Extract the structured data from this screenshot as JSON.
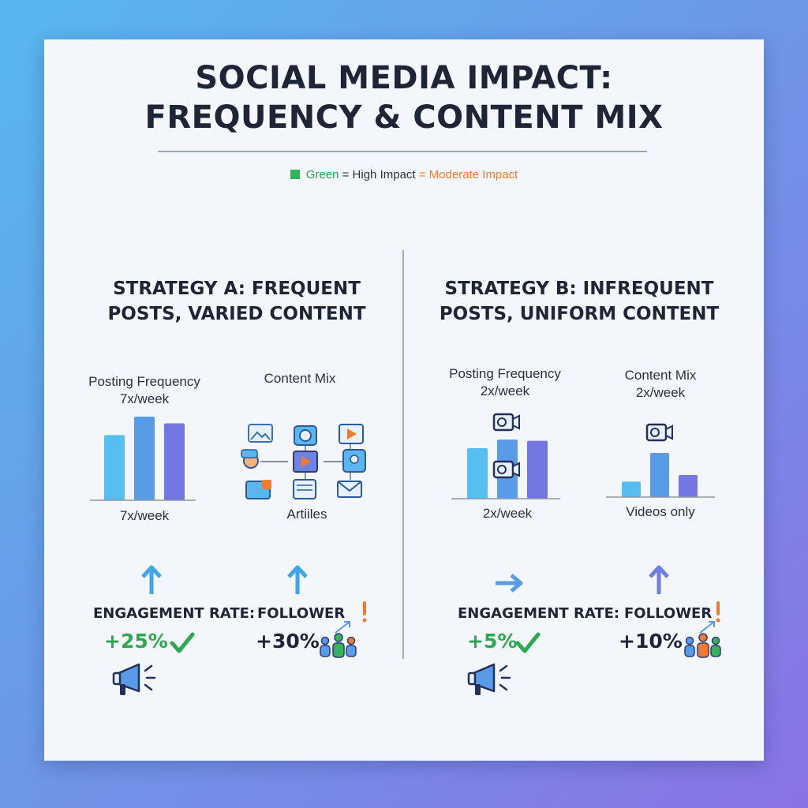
{
  "title": {
    "line1": "SOCIAL MEDIA IMPACT:",
    "line2": "FREQUENCY & CONTENT MIX"
  },
  "legend": {
    "green_word": "Green",
    "eq1": " = High Impact ",
    "eq2": "= Moderate Impact",
    "colors": {
      "high": "#34b35a",
      "moderate": "#f07b2e"
    }
  },
  "strategy_a": {
    "heading_line1": "STRATEGY A: FREQUENT",
    "heading_line2": "POSTS, VARIED CONTENT",
    "freq_label": "Posting Frequency",
    "freq_value": "7x/week",
    "freq_caption": "7x/week",
    "mix_label": "Content Mix",
    "mix_caption": "Artiiles",
    "engagement_label": "ENGAGEMENT RATE:",
    "engagement_value": "+25%",
    "follower_label": "FOLLOWER",
    "follower_value": "+30%",
    "content_icons": [
      "image-icon",
      "profile-icon",
      "video-play-icon",
      "chat-user-icon",
      "user-card-icon",
      "envelope-icon",
      "photo-stack-icon",
      "article-icon",
      "play-button-icon"
    ]
  },
  "strategy_b": {
    "heading_line1": "STRATEGY B: INFREQUENT",
    "heading_line2": "POSTS, UNIFORM CONTENT",
    "freq_label": "Posting Frequency",
    "freq_value": "2x/week",
    "freq_caption": "2x/week",
    "mix_label": "Content Mix",
    "mix_value": "2x/week",
    "mix_caption": "Videos only",
    "engagement_label": "ENGAGEMENT RATE:",
    "engagement_value": "+5%",
    "follower_label": "FOLLOWER",
    "follower_value": "+10%"
  },
  "chart_data": [
    {
      "type": "bar",
      "title": "Posting Frequency",
      "values": [
        0.78,
        1.0,
        0.92
      ],
      "colors": [
        "#56bff0",
        "#5a9be8",
        "#7477e2"
      ]
    },
    {
      "type": "bar",
      "title": "Posting Frequency",
      "values": [
        0.82,
        0.96,
        0.94
      ],
      "colors": [
        "#56bff0",
        "#5a9be8",
        "#7477e2"
      ]
    },
    {
      "type": "bar",
      "title": "Content Mix",
      "values": [
        0.35,
        1.0,
        0.5
      ],
      "colors": [
        "#56bff0",
        "#5a9be8",
        "#7477e2"
      ]
    }
  ]
}
